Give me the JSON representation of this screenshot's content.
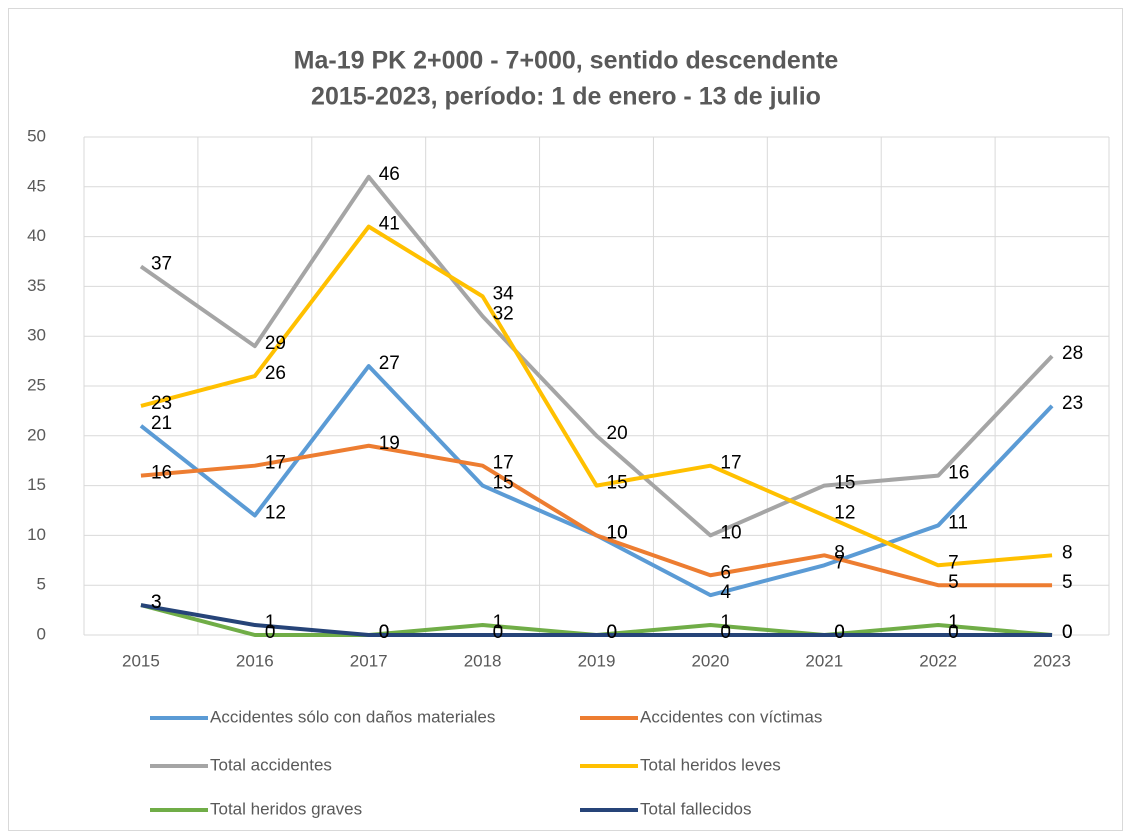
{
  "chart_data": {
    "type": "line",
    "title": "Ma-19 PK 2+000 - 7+000, sentido descendente",
    "subtitle": "2015-2023, período: 1 de enero - 13 de julio",
    "categories": [
      "2015",
      "2016",
      "2017",
      "2018",
      "2019",
      "2020",
      "2021",
      "2022",
      "2023"
    ],
    "series": [
      {
        "name": "Accidentes sólo con daños materiales",
        "color": "#5b9bd5",
        "values": [
          21,
          12,
          27,
          15,
          10,
          4,
          7,
          11,
          23
        ]
      },
      {
        "name": "Accidentes con víctimas",
        "color": "#ed7d31",
        "values": [
          16,
          17,
          19,
          17,
          10,
          6,
          8,
          5,
          5
        ]
      },
      {
        "name": "Total accidentes",
        "color": "#a5a5a5",
        "values": [
          37,
          29,
          46,
          32,
          20,
          10,
          15,
          16,
          28
        ]
      },
      {
        "name": "Total heridos leves",
        "color": "#ffc000",
        "values": [
          23,
          26,
          41,
          34,
          15,
          17,
          12,
          7,
          8
        ]
      },
      {
        "name": "Total heridos graves",
        "color": "#70ad47",
        "values": [
          3,
          0,
          0,
          1,
          0,
          1,
          0,
          1,
          0
        ]
      },
      {
        "name": "Total fallecidos",
        "color": "#264478",
        "values": [
          3,
          1,
          0,
          0,
          0,
          0,
          0,
          0,
          0
        ]
      }
    ],
    "ylim": [
      0,
      50
    ],
    "yticks": [
      0,
      5,
      10,
      15,
      20,
      25,
      30,
      35,
      40,
      45,
      50
    ],
    "grid": true,
    "legend": "bottom"
  }
}
